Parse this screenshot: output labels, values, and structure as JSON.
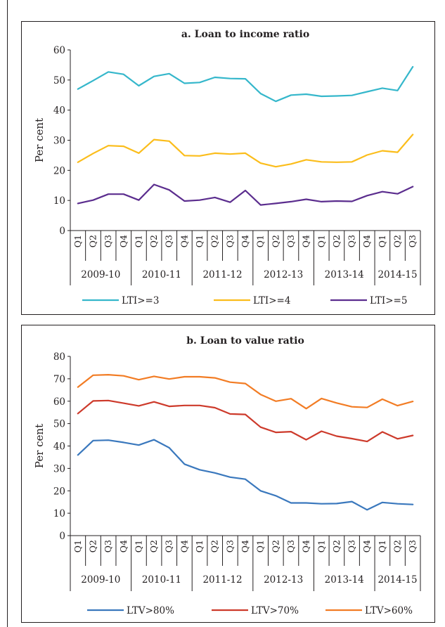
{
  "chart_data": [
    {
      "type": "line",
      "title": "a. Loan to income ratio",
      "ylabel": "Per cent",
      "xlabel": "",
      "ylim": [
        0,
        60
      ],
      "yticks": [
        0,
        10,
        20,
        30,
        40,
        50,
        60
      ],
      "categories": [
        "Q1",
        "Q2",
        "Q3",
        "Q4",
        "Q1",
        "Q2",
        "Q3",
        "Q4",
        "Q1",
        "Q2",
        "Q3",
        "Q4",
        "Q1",
        "Q2",
        "Q3",
        "Q4",
        "Q1",
        "Q2",
        "Q3",
        "Q4",
        "Q1",
        "Q2",
        "Q3"
      ],
      "year_groups": [
        {
          "label": "2009-10",
          "start": 0,
          "count": 4
        },
        {
          "label": "2010-11",
          "start": 4,
          "count": 4
        },
        {
          "label": "2011-12",
          "start": 8,
          "count": 4
        },
        {
          "label": "2012-13",
          "start": 12,
          "count": 4
        },
        {
          "label": "2013-14",
          "start": 16,
          "count": 4
        },
        {
          "label": "2014-15",
          "start": 20,
          "count": 3
        }
      ],
      "legend_position": "bottom",
      "series": [
        {
          "name": "LTI>=3",
          "color": "#35b7cb",
          "values": [
            47.0,
            49.8,
            52.7,
            51.9,
            48.1,
            51.2,
            52.1,
            48.9,
            49.2,
            50.9,
            50.5,
            50.4,
            45.5,
            42.9,
            45.0,
            45.3,
            44.6,
            44.7,
            44.9,
            46.1,
            47.3,
            46.5,
            54.4
          ]
        },
        {
          "name": "LTI>=4",
          "color": "#fbbd1b",
          "values": [
            22.7,
            25.6,
            28.2,
            28.0,
            25.7,
            30.2,
            29.7,
            24.9,
            24.8,
            25.7,
            25.4,
            25.7,
            22.4,
            21.2,
            22.1,
            23.5,
            22.8,
            22.7,
            22.8,
            25.1,
            26.5,
            26.0,
            31.9
          ]
        },
        {
          "name": "LTI>=5",
          "color": "#5b2d8e",
          "values": [
            9.0,
            10.1,
            12.1,
            12.1,
            10.1,
            15.3,
            13.5,
            9.8,
            10.1,
            11.0,
            9.4,
            13.3,
            8.5,
            9.0,
            9.6,
            10.4,
            9.6,
            9.8,
            9.7,
            11.6,
            12.9,
            12.2,
            14.6
          ]
        }
      ]
    },
    {
      "type": "line",
      "title": "b. Loan to value ratio",
      "ylabel": "Per cent",
      "xlabel": "",
      "ylim": [
        0,
        80
      ],
      "yticks": [
        0,
        10,
        20,
        30,
        40,
        50,
        60,
        70,
        80
      ],
      "categories": [
        "Q1",
        "Q2",
        "Q3",
        "Q4",
        "Q1",
        "Q2",
        "Q3",
        "Q4",
        "Q1",
        "Q2",
        "Q3",
        "Q4",
        "Q1",
        "Q2",
        "Q3",
        "Q4",
        "Q1",
        "Q2",
        "Q3",
        "Q4",
        "Q1",
        "Q2",
        "Q3"
      ],
      "year_groups": [
        {
          "label": "2009-10",
          "start": 0,
          "count": 4
        },
        {
          "label": "2010-11",
          "start": 4,
          "count": 4
        },
        {
          "label": "2011-12",
          "start": 8,
          "count": 4
        },
        {
          "label": "2012-13",
          "start": 12,
          "count": 4
        },
        {
          "label": "2013-14",
          "start": 16,
          "count": 4
        },
        {
          "label": "2014-15",
          "start": 20,
          "count": 3
        }
      ],
      "legend_position": "bottom",
      "series": [
        {
          "name": "LTV>80%",
          "color": "#3a78bd",
          "values": [
            36.0,
            42.4,
            42.6,
            41.6,
            40.4,
            42.8,
            39.2,
            31.9,
            29.4,
            28.0,
            26.1,
            25.2,
            20.0,
            17.8,
            14.6,
            14.6,
            14.2,
            14.3,
            15.2,
            11.5,
            14.8,
            14.2,
            13.9
          ]
        },
        {
          "name": "LTV>70%",
          "color": "#cd3a2b",
          "values": [
            54.5,
            60.1,
            60.3,
            59.1,
            57.9,
            59.7,
            57.7,
            58.1,
            58.1,
            57.1,
            54.3,
            54.1,
            48.4,
            46.1,
            46.4,
            42.8,
            46.6,
            44.4,
            43.3,
            42.0,
            46.3,
            43.2,
            44.7
          ]
        },
        {
          "name": "LTV>60%",
          "color": "#f27c24",
          "values": [
            66.3,
            71.6,
            71.8,
            71.3,
            69.6,
            71.1,
            69.9,
            70.9,
            70.9,
            70.4,
            68.5,
            67.9,
            63.0,
            60.0,
            61.1,
            56.7,
            61.2,
            59.2,
            57.5,
            57.2,
            60.9,
            58.0,
            59.9
          ]
        }
      ]
    }
  ]
}
